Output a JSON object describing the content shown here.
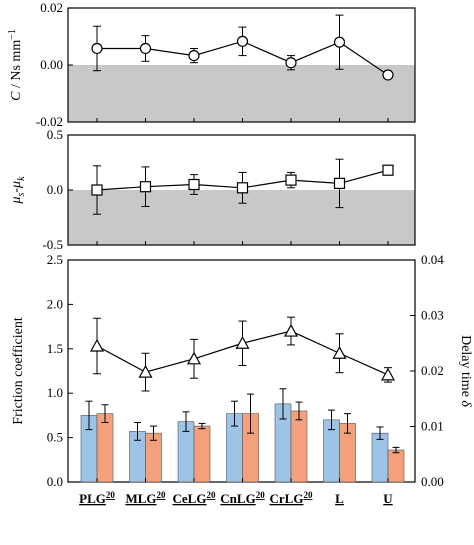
{
  "chart_data": [
    {
      "type": "line",
      "ylabel": "C / Ns mm⁻¹",
      "ylim": [
        -0.02,
        0.02
      ],
      "yticks": [
        "-0.02",
        "0.00",
        "0.02"
      ],
      "shaded_region": "below 0",
      "marker": "circle",
      "categories": [
        "PLG20",
        "MLG20",
        "CeLG20",
        "CnLG20",
        "CrLG20",
        "L",
        "U"
      ],
      "values": [
        0.0058,
        0.0058,
        0.0033,
        0.0083,
        0.0008,
        0.008,
        -0.0035
      ],
      "errors": [
        0.0078,
        0.0045,
        0.0025,
        0.005,
        0.0025,
        0.0095,
        0
      ]
    },
    {
      "type": "line",
      "ylabel": "μs-μk",
      "ylim": [
        -0.5,
        0.5
      ],
      "yticks": [
        "-0.5",
        "0.0",
        "0.5"
      ],
      "shaded_region": "below 0",
      "marker": "square",
      "categories": [
        "PLG20",
        "MLG20",
        "CeLG20",
        "CnLG20",
        "CrLG20",
        "L",
        "U"
      ],
      "values": [
        0.0,
        0.03,
        0.05,
        0.02,
        0.09,
        0.06,
        0.18
      ],
      "errors": [
        0.22,
        0.18,
        0.09,
        0.14,
        0.07,
        0.22,
        0
      ]
    },
    {
      "type": "bar",
      "ylabel": "Friction coefficient",
      "ylim": [
        0,
        2.5
      ],
      "yticks": [
        "0.0",
        "0.5",
        "1.0",
        "1.5",
        "2.0",
        "2.5"
      ],
      "y2label": "Delay time δ",
      "y2lim": [
        0,
        0.04
      ],
      "y2ticks": [
        "0.00",
        "0.01",
        "0.02",
        "0.03",
        "0.04"
      ],
      "categories": [
        "PLG",
        "MLG",
        "CeLG",
        "CnLG",
        "CrLG",
        "L",
        "U"
      ],
      "category_superscripts": [
        "20",
        "20",
        "20",
        "20",
        "20",
        "",
        ""
      ],
      "series": [
        {
          "color": "#9DC3E6",
          "values": [
            0.75,
            0.57,
            0.68,
            0.77,
            0.88,
            0.7,
            0.55
          ],
          "errors": [
            0.16,
            0.1,
            0.11,
            0.14,
            0.17,
            0.11,
            0.07
          ]
        },
        {
          "color": "#F4A07A",
          "values": [
            0.77,
            0.55,
            0.63,
            0.77,
            0.8,
            0.66,
            0.36
          ],
          "errors": [
            0.1,
            0.08,
            0.03,
            0.22,
            0.1,
            0.11,
            0.03
          ]
        }
      ],
      "line_series": {
        "axis": "right",
        "marker": "triangle",
        "values": [
          0.0245,
          0.0198,
          0.0222,
          0.025,
          0.0272,
          0.0232,
          0.0193
        ],
        "errors": [
          0.005,
          0.0034,
          0.0035,
          0.004,
          0.0025,
          0.0035,
          0.0013
        ]
      }
    }
  ]
}
